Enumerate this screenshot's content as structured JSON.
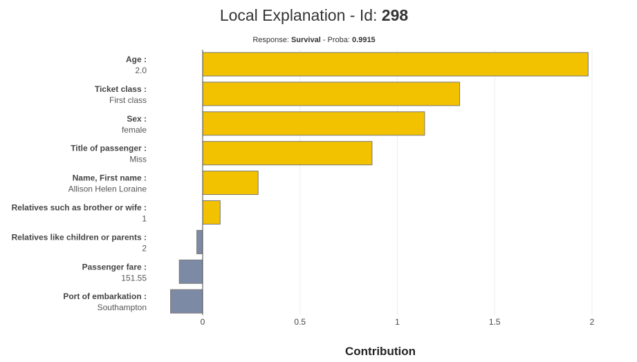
{
  "title": {
    "prefix": "Local Explanation - Id: ",
    "id": "298"
  },
  "subtitle": {
    "response_label": "Response: ",
    "response_value": "Survival",
    "proba_label": " - Proba: ",
    "proba_value": "0.9915"
  },
  "colors": {
    "positive": "#f2c200",
    "negative": "#7d8aa6",
    "bar_border": "#777777",
    "grid": "#eeeeee"
  },
  "chart_data": {
    "type": "bar",
    "orientation": "horizontal",
    "title": "Local Explanation - Id: 298",
    "xlabel": "Contribution",
    "ylabel": "",
    "xlim": [
      -0.17,
      2.02
    ],
    "xticks": [
      0,
      0.5,
      1,
      1.5,
      2
    ],
    "xtick_labels": [
      "0",
      "0.5",
      "1",
      "1.5",
      "2"
    ],
    "categories": [
      {
        "name": "Age :",
        "value_label": "2.0"
      },
      {
        "name": "Ticket class :",
        "value_label": "First class"
      },
      {
        "name": "Sex :",
        "value_label": "female"
      },
      {
        "name": "Title of passenger :",
        "value_label": "Miss"
      },
      {
        "name": "Name, First name :",
        "value_label": "Allison Helen Loraine"
      },
      {
        "name": "Relatives such as brother or wife :",
        "value_label": "1"
      },
      {
        "name": "Relatives like children or parents :",
        "value_label": "2"
      },
      {
        "name": "Passenger fare :",
        "value_label": "151.55"
      },
      {
        "name": "Port of embarkation :",
        "value_label": "Southampton"
      }
    ],
    "values": [
      1.98,
      1.32,
      1.14,
      0.87,
      0.285,
      0.09,
      -0.03,
      -0.12,
      -0.165
    ]
  }
}
